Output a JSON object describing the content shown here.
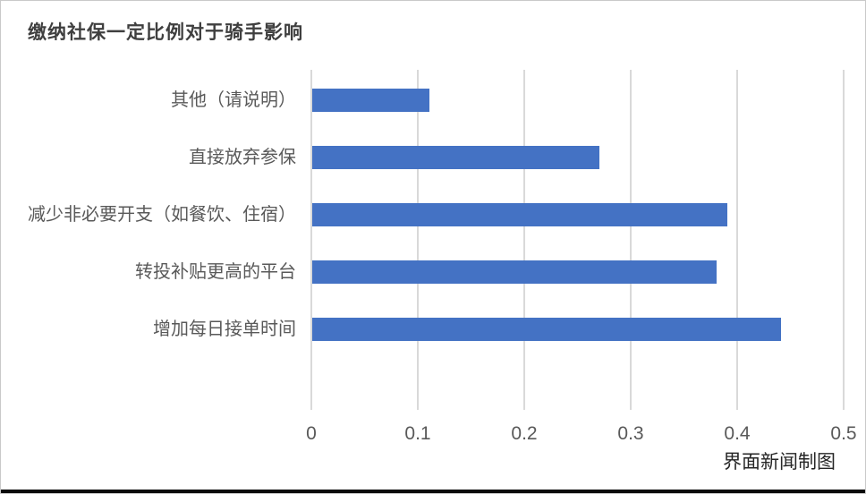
{
  "chart_data": {
    "type": "bar",
    "orientation": "horizontal",
    "title": "缴纳社保一定比例对于骑手影响",
    "categories": [
      "其他（请说明）",
      "直接放弃参保",
      "减少非必要开支（如餐饮、住宿）",
      "转投补贴更高的平台",
      "增加每日接单时间"
    ],
    "values": [
      0.11,
      0.27,
      0.39,
      0.38,
      0.44
    ],
    "xlabel": "",
    "ylabel": "",
    "xlim": [
      0,
      0.5
    ],
    "x_ticks": [
      0,
      0.1,
      0.2,
      0.3,
      0.4,
      0.5
    ],
    "x_tick_labels": [
      "0",
      "0.1",
      "0.2",
      "0.3",
      "0.4",
      "0.5"
    ],
    "grid": true,
    "legend": "none",
    "colors": {
      "bar": "#4472C4",
      "gridline": "#D9D9D9",
      "tick_label": "#595959",
      "category_label": "#595959",
      "title": "#3F3F3F"
    }
  },
  "footer": {
    "credit": "界面新闻制图"
  }
}
